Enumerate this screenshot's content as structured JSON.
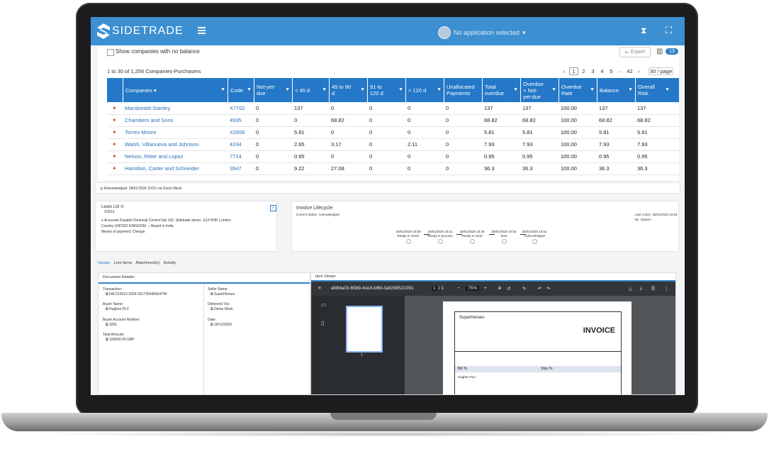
{
  "header": {
    "brand": "SIDETRADE",
    "app_selector": "No application selected"
  },
  "toolbar": {
    "show_no_balance_label": "Show companies with no balance",
    "export_label": "Export",
    "column_count": "13"
  },
  "results": {
    "summary": "1 to 30 of 1,256 Companies-Purchasers",
    "pages": [
      "1",
      "2",
      "3",
      "4",
      "5",
      "···",
      "42"
    ],
    "current_page": "1",
    "page_size": "30 / page"
  },
  "grid": {
    "columns": [
      "Companies",
      "Code",
      "Not-yet-due",
      "< 45 d",
      "45 to 90 d",
      "91 to 120 d",
      "> 120 d",
      "Unallocated Payments",
      "Total overdue",
      "Overdue + Not-yet-due",
      "Overdue Rate",
      "Balance",
      "Overall Risk"
    ],
    "rows": [
      {
        "company": "Macdonald-Stanley",
        "code": "X7702",
        "nyd": "0",
        "lt45": "137",
        "d45_90": "0",
        "d91_120": "0",
        "gt120": "0",
        "unalloc": "0",
        "total": "137",
        "overdue_nyd": "137",
        "rate": "100.00",
        "balance": "137",
        "risk": "137"
      },
      {
        "company": "Chambers and Sons",
        "code": "4935",
        "nyd": "0",
        "lt45": "0",
        "d45_90": "68.82",
        "d91_120": "0",
        "gt120": "0",
        "unalloc": "0",
        "total": "68.82",
        "overdue_nyd": "68.82",
        "rate": "100.00",
        "balance": "68.82",
        "risk": "68.82"
      },
      {
        "company": "Torres-Moore",
        "code": "X2856",
        "nyd": "0",
        "lt45": "5.81",
        "d45_90": "0",
        "d91_120": "0",
        "gt120": "0",
        "unalloc": "0",
        "total": "5.81",
        "overdue_nyd": "5.81",
        "rate": "100.00",
        "balance": "5.81",
        "risk": "5.81"
      },
      {
        "company": "Walsh, Villanueva and Johnson",
        "code": "4244",
        "nyd": "0",
        "lt45": "2.65",
        "d45_90": "3.17",
        "d91_120": "0",
        "gt120": "2.11",
        "unalloc": "0",
        "total": "7.93",
        "overdue_nyd": "7.93",
        "rate": "100.00",
        "balance": "7.93",
        "risk": "7.93"
      },
      {
        "company": "Nelson, Ritter and Lopez",
        "code": "7714",
        "nyd": "0",
        "lt45": "0.95",
        "d45_90": "0",
        "d91_120": "0",
        "gt120": "0",
        "unalloc": "0",
        "total": "0.95",
        "overdue_nyd": "0.95",
        "rate": "100.00",
        "balance": "0.95",
        "risk": "0.95"
      },
      {
        "company": "Hamilton, Carter and Schneider",
        "code": "3947",
        "nyd": "0",
        "lt45": "9.22",
        "d45_90": "27.08",
        "d91_120": "0",
        "gt120": "0",
        "unalloc": "0",
        "total": "36.3",
        "overdue_nyd": "36.3",
        "rate": "100.00",
        "balance": "36.3",
        "risk": "36.3"
      }
    ]
  },
  "notice": "Acknowledged: 28/01/2026 10:52 via Demo Mock",
  "company_card": {
    "name": "Lewis Ltd",
    "code": "X3913",
    "address": "Accounts Payable Financial Control Dpt 100, Sidetrade street , E14 5HP, London",
    "country": "Country UNITED KINGDOM",
    "based": "Based in India",
    "payment": "Means of payment: Cheque"
  },
  "lifecycle": {
    "title": "Invoice Lifecycle",
    "status_label": "Current Status",
    "status_value": "Acknowledged",
    "last_action_label": "Last Action",
    "last_action_value": "28/01/2026 10:52",
    "by_label": "By",
    "by_value": "System",
    "steps": [
      {
        "date": "28/01/2026 10:09",
        "label": "Ready to check"
      },
      {
        "date": "28/01/2026 10:21",
        "label": "Ready to process"
      },
      {
        "date": "28/01/2026 10:48",
        "label": "Ready to send"
      },
      {
        "date": "28/01/2026 10:50",
        "label": "Sent"
      },
      {
        "date": "28/01/2026 10:52",
        "label": "Acknowledged"
      }
    ]
  },
  "tabs": [
    "Header",
    "Line Items",
    "Attachment(s)",
    "Activity"
  ],
  "document_header": {
    "title": "Document Header",
    "transaction_label": "Transaction:",
    "transaction_value": "FAC/X3913-2026-001735446654746",
    "buyer_name_label": "Buyer Name:",
    "buyer_name_value": "Hughes PLC",
    "buyer_account_label": "Buyer Account Number:",
    "buyer_account_value": "3291",
    "total_amount_label": "Total Amount:",
    "total_amount_value": "109560.00 GBP",
    "seller_name_label": "Seller Name:",
    "seller_name_value": "SuperHeroes",
    "delivered_via_label": "Delivered Via:",
    "delivered_via_value": "Demo Mock",
    "date_label": "Date:",
    "date_value": "18/12/2026"
  },
  "viewer": {
    "title": "Item Viewer",
    "file_id": "afdfda03-6589-4ce3-bf6b-fa8298521091",
    "page": "1",
    "page_total": "/ 1",
    "zoom": "75%",
    "thumb_label": "1",
    "invoice_company": "SuperHeroes",
    "invoice_title": "INVOICE",
    "bill_to": "Bill To",
    "ship_to": "Ship To",
    "bill_name": "Hughes PLC"
  }
}
